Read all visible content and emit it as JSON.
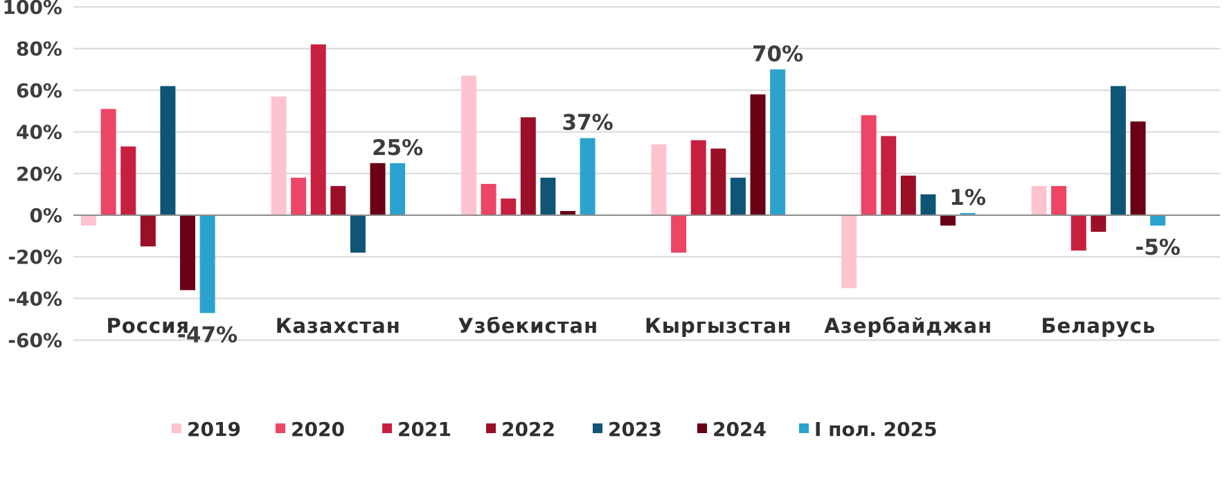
{
  "chart_data": {
    "type": "bar",
    "title": "",
    "xlabel": "",
    "ylabel": "",
    "ylim": [
      -60,
      100
    ],
    "yticks": [
      100,
      80,
      60,
      40,
      20,
      0,
      -20,
      -40,
      -60
    ],
    "ytick_labels": [
      "100%",
      "80%",
      "60%",
      "40%",
      "20%",
      "0%",
      "-20%",
      "-40%",
      "-60%"
    ],
    "grid": true,
    "legend_position": "bottom",
    "categories": [
      "Россия",
      "Казахстан",
      "Узбекистан",
      "Кыргызстан",
      "Азербайджан",
      "Беларусь"
    ],
    "series": [
      {
        "name": "2019",
        "color": "#FDC4D0",
        "values": [
          -5,
          57,
          67,
          34,
          -35,
          14
        ]
      },
      {
        "name": "2020",
        "color": "#EC4565",
        "values": [
          51,
          18,
          15,
          -18,
          48,
          14
        ]
      },
      {
        "name": "2021",
        "color": "#C7203F",
        "values": [
          33,
          82,
          8,
          36,
          38,
          -17
        ]
      },
      {
        "name": "2022",
        "color": "#9A0F28",
        "values": [
          -15,
          14,
          47,
          32,
          19,
          -8
        ]
      },
      {
        "name": "2023",
        "color": "#0E5576",
        "values": [
          62,
          -18,
          18,
          18,
          10,
          62
        ]
      },
      {
        "name": "2024",
        "color": "#6A0016",
        "values": [
          -36,
          25,
          2,
          58,
          -5,
          45
        ]
      },
      {
        "name": "I пол. 2025",
        "color": "#2BA3CE",
        "values": [
          -47,
          25,
          37,
          70,
          1,
          -5
        ]
      }
    ],
    "data_labels": [
      {
        "series": "I пол. 2025",
        "category": "Россия",
        "text": "-47%"
      },
      {
        "series": "I пол. 2025",
        "category": "Казахстан",
        "text": "25%"
      },
      {
        "series": "I пол. 2025",
        "category": "Узбекистан",
        "text": "37%"
      },
      {
        "series": "I пол. 2025",
        "category": "Кыргызстан",
        "text": "70%"
      },
      {
        "series": "I пол. 2025",
        "category": "Азербайджан",
        "text": "1%"
      },
      {
        "series": "I пол. 2025",
        "category": "Беларусь",
        "text": "-5%"
      }
    ]
  }
}
